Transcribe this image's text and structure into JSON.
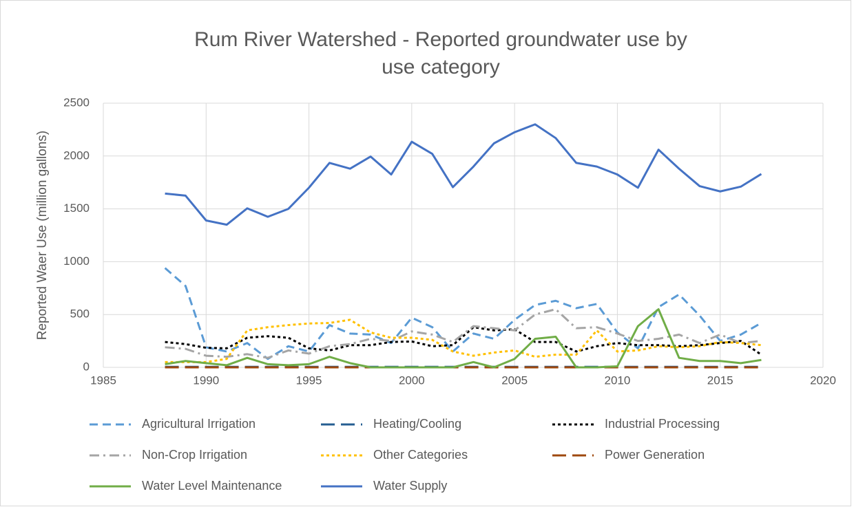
{
  "chart_data": {
    "type": "line",
    "title": "Rum River Watershed - Reported groundwater use by use category",
    "y_label": "Reported Waer Use (million gallons)",
    "x": [
      1988,
      1989,
      1990,
      1991,
      1992,
      1993,
      1994,
      1995,
      1996,
      1997,
      1998,
      1999,
      2000,
      2001,
      2002,
      2003,
      2004,
      2005,
      2006,
      2007,
      2008,
      2009,
      2010,
      2011,
      2012,
      2013,
      2014,
      2015,
      2016,
      2017
    ],
    "xlim": [
      1985,
      2020
    ],
    "xticks": [
      1985,
      1990,
      1995,
      2000,
      2005,
      2010,
      2015,
      2020
    ],
    "ylim": [
      0,
      2500
    ],
    "yticks": [
      0,
      500,
      1000,
      1500,
      2000,
      2500
    ],
    "grid": true,
    "legend": "bottom",
    "series": [
      {
        "name": "Agricultural Irrigation",
        "color": "#5b9bd5",
        "dash": "dash",
        "values": [
          940,
          770,
          190,
          150,
          230,
          80,
          200,
          150,
          400,
          320,
          310,
          230,
          470,
          380,
          150,
          320,
          270,
          450,
          590,
          630,
          560,
          600,
          330,
          180,
          570,
          690,
          490,
          250,
          310,
          420
        ]
      },
      {
        "name": "Heating/Cooling",
        "color": "#255e91",
        "dash": "longdash",
        "values": [
          5,
          5,
          5,
          5,
          5,
          5,
          5,
          5,
          5,
          5,
          5,
          5,
          5,
          5,
          5,
          5,
          5,
          5,
          5,
          5,
          5,
          5,
          5,
          5,
          5,
          5,
          5,
          5,
          5,
          5
        ]
      },
      {
        "name": "Industrial Processing",
        "color": "#000000",
        "dash": "dot",
        "values": [
          240,
          220,
          185,
          180,
          280,
          295,
          280,
          180,
          160,
          210,
          210,
          240,
          245,
          200,
          210,
          380,
          350,
          360,
          240,
          240,
          150,
          200,
          230,
          210,
          210,
          200,
          210,
          230,
          250,
          120
        ]
      },
      {
        "name": "Non-Crop Irrigation",
        "color": "#a5a5a5",
        "dash": "dashdot",
        "values": [
          190,
          175,
          110,
          100,
          125,
          90,
          160,
          130,
          200,
          220,
          270,
          250,
          340,
          310,
          240,
          390,
          370,
          350,
          500,
          550,
          370,
          380,
          320,
          250,
          270,
          310,
          230,
          310,
          230,
          250
        ]
      },
      {
        "name": "Other Categories",
        "color": "#ffc000",
        "dash": "dot",
        "values": [
          50,
          50,
          50,
          80,
          350,
          380,
          400,
          415,
          420,
          450,
          330,
          280,
          280,
          260,
          150,
          110,
          140,
          160,
          100,
          120,
          120,
          350,
          150,
          160,
          200,
          190,
          200,
          240,
          230,
          210
        ]
      },
      {
        "name": "Power Generation",
        "color": "#9e480e",
        "dash": "longdash",
        "values": [
          0,
          0,
          0,
          0,
          0,
          0,
          0,
          0,
          0,
          0,
          0,
          0,
          0,
          0,
          0,
          0,
          0,
          0,
          0,
          0,
          0,
          0,
          0,
          0,
          0,
          0,
          0,
          0,
          0,
          0
        ]
      },
      {
        "name": "Water Level Maintenance",
        "color": "#70ad47",
        "dash": "solid",
        "values": [
          30,
          60,
          40,
          20,
          90,
          30,
          20,
          30,
          100,
          40,
          0,
          0,
          0,
          0,
          0,
          50,
          0,
          80,
          270,
          290,
          0,
          0,
          10,
          390,
          550,
          90,
          60,
          60,
          40,
          70
        ]
      },
      {
        "name": "Water Supply",
        "color": "#4472c4",
        "dash": "solid",
        "values": [
          1645,
          1625,
          1390,
          1350,
          1505,
          1425,
          1500,
          1700,
          1935,
          1880,
          1995,
          1825,
          2135,
          2020,
          1705,
          1900,
          2120,
          2225,
          2300,
          2170,
          1935,
          1900,
          1825,
          1700,
          2060,
          1880,
          1715,
          1665,
          1710,
          1830
        ]
      }
    ]
  }
}
